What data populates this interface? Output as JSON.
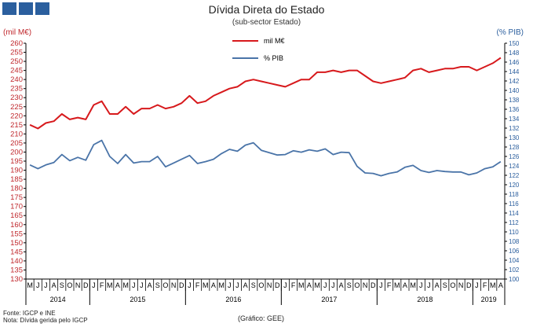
{
  "header": {
    "logo": "GEE logo",
    "title": "Dívida Direta do Estado",
    "subtitle": "(sub-sector Estado)"
  },
  "footer": {
    "source": "Fonte: IGCP e INE",
    "note": "Nota: Dívida gerida pelo IGCP",
    "credit": "(Gráfico: GEE)"
  },
  "colors": {
    "series1": "#d7191c",
    "series2": "#4a74a8",
    "left_axis": "#c0282d",
    "right_axis": "#2c5f9e"
  },
  "chart_data": {
    "type": "line",
    "title": "Dívida Direta do Estado",
    "subtitle": "(sub-sector Estado)",
    "y_left": {
      "label": "(mil M€)",
      "range": [
        130,
        260
      ],
      "step": 5
    },
    "y_right": {
      "label": "(% PIB)",
      "range": [
        100,
        150
      ],
      "step": 2
    },
    "x_months": [
      "M",
      "J",
      "J",
      "A",
      "S",
      "O",
      "N",
      "D",
      "J",
      "F",
      "M",
      "A",
      "M",
      "J",
      "J",
      "A",
      "S",
      "O",
      "N",
      "D",
      "J",
      "F",
      "M",
      "A",
      "M",
      "J",
      "J",
      "A",
      "S",
      "O",
      "N",
      "D",
      "J",
      "F",
      "M",
      "A",
      "M",
      "J",
      "J",
      "A",
      "S",
      "O",
      "N",
      "D",
      "J",
      "F",
      "M",
      "A",
      "M",
      "J",
      "J",
      "A",
      "S",
      "O",
      "N",
      "D",
      "J",
      "F",
      "M",
      "A"
    ],
    "x_years": [
      {
        "label": "2014",
        "from": 0,
        "to": 7
      },
      {
        "label": "2015",
        "from": 8,
        "to": 19
      },
      {
        "label": "2016",
        "from": 20,
        "to": 31
      },
      {
        "label": "2017",
        "from": 32,
        "to": 43
      },
      {
        "label": "2018",
        "from": 44,
        "to": 55
      },
      {
        "label": "2019",
        "from": 56,
        "to": 59
      }
    ],
    "legend_position": "top-center",
    "grid": false,
    "series": [
      {
        "name": "mil M€",
        "axis": "left",
        "values": [
          215,
          213,
          216,
          217,
          221,
          218,
          219,
          218,
          226,
          228,
          221,
          221,
          225,
          221,
          224,
          224,
          226,
          224,
          225,
          227,
          231,
          227,
          228,
          231,
          233,
          235,
          236,
          239,
          240,
          239,
          238,
          237,
          236,
          238,
          240,
          240,
          244,
          244,
          245,
          244,
          245,
          245,
          242,
          239,
          238,
          239,
          240,
          241,
          245,
          246,
          244,
          245,
          246,
          246,
          247,
          247,
          245,
          247,
          249,
          252
        ]
      },
      {
        "name": "% PIB",
        "axis": "right",
        "values": [
          124.2,
          123.4,
          124.2,
          124.7,
          126.4,
          125.1,
          125.8,
          125.2,
          128.5,
          129.4,
          126.0,
          124.5,
          126.4,
          124.6,
          124.9,
          124.9,
          126.0,
          123.8,
          124.6,
          125.4,
          126.2,
          124.5,
          124.9,
          125.4,
          126.6,
          127.5,
          127.1,
          128.4,
          128.9,
          127.3,
          126.8,
          126.3,
          126.4,
          127.2,
          126.9,
          127.4,
          127.1,
          127.6,
          126.4,
          126.9,
          126.8,
          123.9,
          122.5,
          122.4,
          121.9,
          122.4,
          122.7,
          123.7,
          124.1,
          123.0,
          122.6,
          123.0,
          122.8,
          122.7,
          122.7,
          122.1,
          122.5,
          123.4,
          123.8,
          124.9
        ]
      }
    ]
  }
}
